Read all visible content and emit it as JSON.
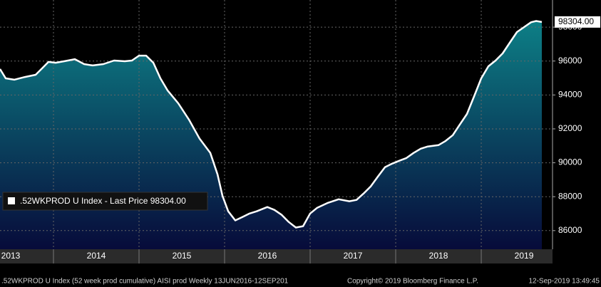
{
  "chart_data": {
    "type": "area",
    "legend": ".52WKPROD U Index - Last Price 98304.00",
    "last_price": {
      "value": 98304,
      "label": "98304.00"
    },
    "footer_left": ".52WKPROD U Index (52 week prod cumulative) AISI prod  Weekly 13JUN2016-12SEP201",
    "footer_center": "Copyright© 2019 Bloomberg Finance L.P.",
    "footer_right": "12-Sep-2019 13:49:45",
    "color": "#ffffff",
    "area_colors": [
      "#0d7f86",
      "#070b3a"
    ],
    "grid": true,
    "x": [
      2013.375,
      2013.442,
      2013.542,
      2013.667,
      2013.792,
      2013.875,
      2013.942,
      2014.025,
      2014.125,
      2014.25,
      2014.358,
      2014.458,
      2014.583,
      2014.708,
      2014.833,
      2014.917,
      2015.0,
      2015.083,
      2015.167,
      2015.25,
      2015.333,
      2015.458,
      2015.583,
      2015.708,
      2015.833,
      2015.917,
      2015.975,
      2016.042,
      2016.125,
      2016.208,
      2016.292,
      2016.375,
      2016.5,
      2016.583,
      2016.667,
      2016.75,
      2016.833,
      2016.917,
      2017.0,
      2017.083,
      2017.208,
      2017.333,
      2017.458,
      2017.542,
      2017.625,
      2017.708,
      2017.792,
      2017.875,
      2017.958,
      2018.042,
      2018.125,
      2018.208,
      2018.292,
      2018.375,
      2018.5,
      2018.583,
      2018.667,
      2018.75,
      2018.833,
      2018.917,
      2019.0,
      2019.083,
      2019.167,
      2019.25,
      2019.333,
      2019.417,
      2019.5,
      2019.583,
      2019.642,
      2019.708
    ],
    "values": [
      95530,
      94980,
      94900,
      95060,
      95190,
      95610,
      95950,
      95900,
      95990,
      96110,
      95820,
      95740,
      95820,
      96030,
      95990,
      96030,
      96320,
      96320,
      95900,
      94980,
      94270,
      93510,
      92550,
      91420,
      90580,
      89320,
      88060,
      87140,
      86600,
      86800,
      87010,
      87140,
      87390,
      87220,
      86930,
      86510,
      86180,
      86260,
      87010,
      87350,
      87640,
      87850,
      87730,
      87810,
      88190,
      88610,
      89190,
      89740,
      89950,
      90120,
      90280,
      90580,
      90830,
      90960,
      91040,
      91290,
      91630,
      92260,
      92880,
      93930,
      94980,
      95690,
      96030,
      96450,
      97080,
      97710,
      98000,
      98290,
      98360,
      98304
    ],
    "xlim": [
      2013.375,
      2019.833
    ],
    "xticks": [
      {
        "value": 2013.5,
        "label": "2013"
      },
      {
        "value": 2014.5,
        "label": "2014"
      },
      {
        "value": 2015.5,
        "label": "2015"
      },
      {
        "value": 2016.5,
        "label": "2016"
      },
      {
        "value": 2017.5,
        "label": "2017"
      },
      {
        "value": 2018.5,
        "label": "2018"
      },
      {
        "value": 2019.5,
        "label": "2019"
      }
    ],
    "ylim": [
      84900,
      99600
    ],
    "yticks": [
      86000,
      88000,
      90000,
      92000,
      94000,
      96000,
      98000
    ]
  }
}
